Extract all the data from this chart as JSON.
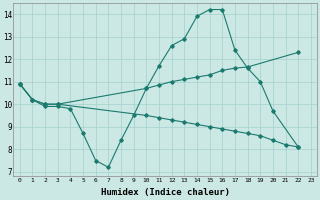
{
  "background_color": "#cce8e4",
  "grid_color": "#aad4d0",
  "line_color": "#1a7a6e",
  "xlabel": "Humidex (Indice chaleur)",
  "ylim": [
    6.8,
    14.5
  ],
  "xlim": [
    -0.5,
    23.5
  ],
  "yticks": [
    7,
    8,
    9,
    10,
    11,
    12,
    13,
    14
  ],
  "xticks": [
    0,
    1,
    2,
    3,
    4,
    5,
    6,
    7,
    8,
    9,
    10,
    11,
    12,
    13,
    14,
    15,
    16,
    17,
    18,
    19,
    20,
    21,
    22,
    23
  ],
  "line1_x": [
    0,
    1,
    2,
    3,
    4,
    5,
    6,
    7,
    8,
    9,
    10,
    11,
    12,
    13,
    14,
    15,
    16,
    17,
    18,
    19,
    20,
    22
  ],
  "line1_y": [
    10.9,
    10.2,
    9.9,
    9.9,
    9.8,
    8.7,
    7.5,
    7.2,
    8.4,
    9.5,
    10.7,
    11.7,
    12.6,
    12.9,
    13.9,
    14.2,
    14.2,
    12.4,
    11.6,
    11.0,
    9.7,
    8.1
  ],
  "line2_x": [
    0,
    1,
    2,
    3,
    10,
    11,
    12,
    13,
    14,
    15,
    16,
    17,
    18,
    22
  ],
  "line2_y": [
    10.9,
    10.2,
    10.0,
    10.0,
    10.7,
    10.85,
    11.0,
    11.1,
    11.2,
    11.3,
    11.5,
    11.6,
    11.65,
    12.3
  ],
  "line3_x": [
    0,
    1,
    2,
    3,
    10,
    11,
    12,
    13,
    14,
    15,
    16,
    17,
    18,
    19,
    20,
    21,
    22
  ],
  "line3_y": [
    10.9,
    10.2,
    10.0,
    10.0,
    9.5,
    9.4,
    9.3,
    9.2,
    9.1,
    9.0,
    8.9,
    8.8,
    8.7,
    8.6,
    8.4,
    8.2,
    8.1
  ]
}
